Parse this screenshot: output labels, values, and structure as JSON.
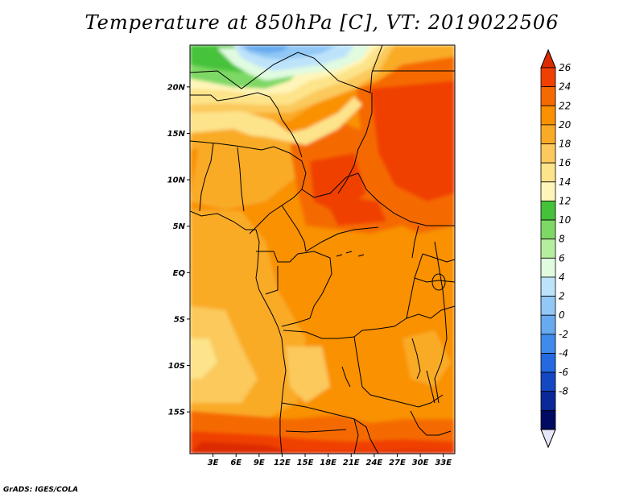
{
  "title": "Temperature at 850hPa [C], VT: 2019022506",
  "footer": "GrADS: IGES/COLA",
  "map": {
    "lat_labels": [
      "20N",
      "15N",
      "10N",
      "5N",
      "EQ",
      "5S",
      "10S",
      "15S"
    ],
    "lon_labels": [
      "3E",
      "6E",
      "9E",
      "12E",
      "15E",
      "18E",
      "21E",
      "24E",
      "27E",
      "30E",
      "33E"
    ],
    "lat_values": [
      20,
      15,
      10,
      5,
      0,
      -5,
      -10,
      -15
    ],
    "lon_values": [
      3,
      6,
      9,
      12,
      15,
      18,
      21,
      24,
      27,
      30,
      33
    ],
    "lon_range": [
      0,
      34.5
    ],
    "lat_range": [
      -19.5,
      24.5
    ]
  },
  "colorbar": {
    "levels": [
      "26",
      "24",
      "22",
      "20",
      "18",
      "16",
      "14",
      "12",
      "10",
      "8",
      "6",
      "4",
      "2",
      "0",
      "-2",
      "-4",
      "-6",
      "-8"
    ],
    "colors": [
      "#dd2b00",
      "#f04000",
      "#f56a00",
      "#f99100",
      "#f9ab28",
      "#fbc95c",
      "#fde38a",
      "#fff5b8",
      "#46c23a",
      "#7ed865",
      "#b5ef9d",
      "#e0fbe0",
      "#bde3fb",
      "#91c8f5",
      "#67aaef",
      "#3f8beb",
      "#2469df",
      "#1448c3",
      "#0a2898",
      "#000a60",
      "#e6e6fa"
    ]
  }
}
